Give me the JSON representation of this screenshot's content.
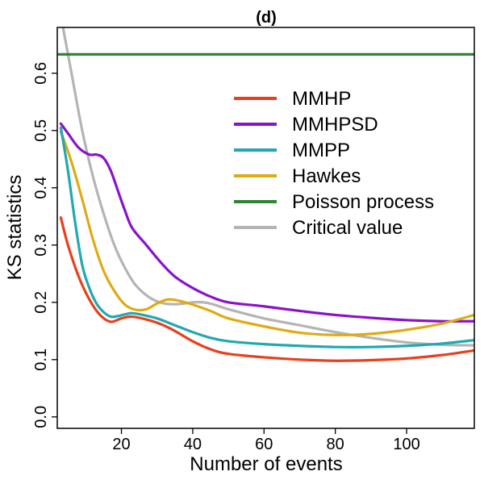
{
  "chart_data": {
    "type": "line",
    "title": "(d)",
    "xlabel": "Number of events",
    "ylabel": "KS statistics",
    "xlim": [
      2,
      119
    ],
    "ylim": [
      -0.02,
      0.68
    ],
    "xticks": [
      20,
      40,
      60,
      80,
      100
    ],
    "yticks": [
      0.0,
      0.1,
      0.2,
      0.3,
      0.4,
      0.5,
      0.6
    ],
    "ytick_labels": [
      "0.0",
      "0.1",
      "0.2",
      "0.3",
      "0.4",
      "0.5",
      "0.6"
    ],
    "grid": false,
    "legend_position": "upper-right",
    "series": [
      {
        "name": "MMHP",
        "color": "#e8401c",
        "x": [
          3,
          5,
          8,
          11,
          14,
          17,
          20,
          23,
          27,
          31,
          35,
          40,
          45,
          50,
          60,
          70,
          80,
          90,
          100,
          110,
          119
        ],
        "y": [
          0.348,
          0.3,
          0.245,
          0.205,
          0.178,
          0.166,
          0.172,
          0.175,
          0.17,
          0.162,
          0.15,
          0.132,
          0.118,
          0.11,
          0.104,
          0.1,
          0.098,
          0.099,
          0.102,
          0.108,
          0.116
        ]
      },
      {
        "name": "MMHPSD",
        "color": "#8a13c8",
        "x": [
          3,
          5,
          8,
          11,
          13,
          15,
          17,
          19,
          21,
          23,
          27,
          31,
          35,
          40,
          45,
          50,
          60,
          70,
          80,
          90,
          100,
          110,
          119
        ],
        "y": [
          0.512,
          0.495,
          0.47,
          0.458,
          0.458,
          0.452,
          0.43,
          0.395,
          0.36,
          0.33,
          0.3,
          0.27,
          0.245,
          0.225,
          0.21,
          0.2,
          0.193,
          0.185,
          0.178,
          0.173,
          0.169,
          0.167,
          0.167
        ]
      },
      {
        "name": "MMPP",
        "color": "#21a8b0",
        "x": [
          3,
          5,
          7,
          9,
          11,
          13,
          15,
          17,
          19,
          21,
          23,
          26,
          30,
          35,
          40,
          45,
          50,
          60,
          70,
          80,
          90,
          100,
          110,
          119
        ],
        "y": [
          0.505,
          0.43,
          0.34,
          0.265,
          0.225,
          0.198,
          0.183,
          0.175,
          0.176,
          0.179,
          0.181,
          0.178,
          0.172,
          0.16,
          0.148,
          0.138,
          0.132,
          0.127,
          0.124,
          0.122,
          0.122,
          0.124,
          0.128,
          0.134
        ]
      },
      {
        "name": "Hawkes",
        "color": "#e0aa14",
        "x": [
          3,
          6,
          9,
          12,
          15,
          18,
          21,
          24,
          27,
          30,
          33,
          36,
          40,
          45,
          50,
          60,
          70,
          80,
          90,
          100,
          110,
          119
        ],
        "y": [
          0.498,
          0.445,
          0.38,
          0.31,
          0.255,
          0.22,
          0.196,
          0.187,
          0.188,
          0.198,
          0.205,
          0.203,
          0.196,
          0.185,
          0.172,
          0.158,
          0.147,
          0.143,
          0.145,
          0.152,
          0.163,
          0.178
        ]
      },
      {
        "name": "Poisson process",
        "color": "#2e8534",
        "x": [
          2,
          119
        ],
        "y": [
          0.633,
          0.633
        ]
      },
      {
        "name": "Critical value",
        "color": "#b4b4b4",
        "x": [
          3,
          6,
          9,
          12,
          15,
          18,
          21,
          24,
          28,
          32,
          36,
          40,
          43,
          46,
          50,
          60,
          70,
          80,
          90,
          100,
          110,
          119
        ],
        "y": [
          0.7,
          0.6,
          0.5,
          0.42,
          0.355,
          0.3,
          0.26,
          0.23,
          0.208,
          0.198,
          0.197,
          0.2,
          0.2,
          0.196,
          0.188,
          0.172,
          0.16,
          0.148,
          0.138,
          0.13,
          0.126,
          0.125
        ]
      }
    ]
  }
}
